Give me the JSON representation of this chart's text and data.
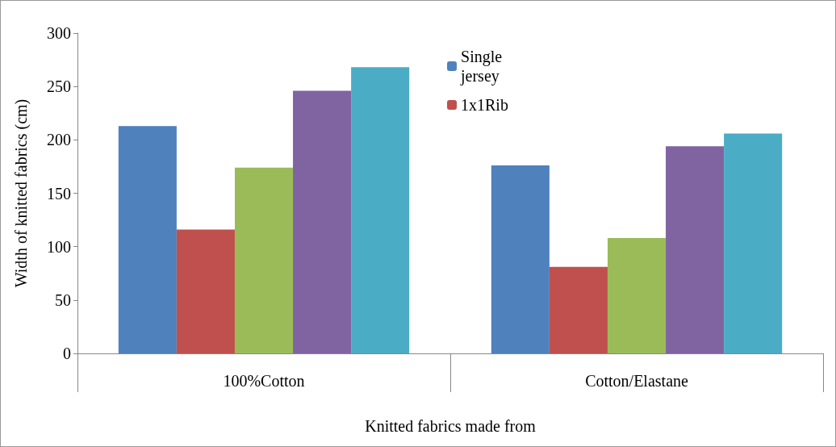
{
  "chart_data": {
    "type": "bar",
    "xlabel": "Knitted fabrics made from",
    "ylabel": "Width of knitted fabrics (cm)",
    "categories": [
      "100%Cotton",
      "Cotton/Elastane"
    ],
    "series": [
      {
        "name": "Single jersey",
        "color": "#4f81bd",
        "values": [
          213,
          176
        ]
      },
      {
        "name": "1x1Rib",
        "color": "#c0504d",
        "values": [
          116,
          81
        ]
      },
      {
        "color": "#9bbb59",
        "values": [
          174,
          108
        ]
      },
      {
        "color": "#8064a2",
        "values": [
          246,
          194
        ]
      },
      {
        "color": "#4bacc6",
        "values": [
          268,
          206
        ]
      }
    ],
    "ylim": [
      0,
      300
    ],
    "yticks": [
      0,
      50,
      100,
      150,
      200,
      250,
      300
    ],
    "grid": false,
    "legend": "top"
  }
}
